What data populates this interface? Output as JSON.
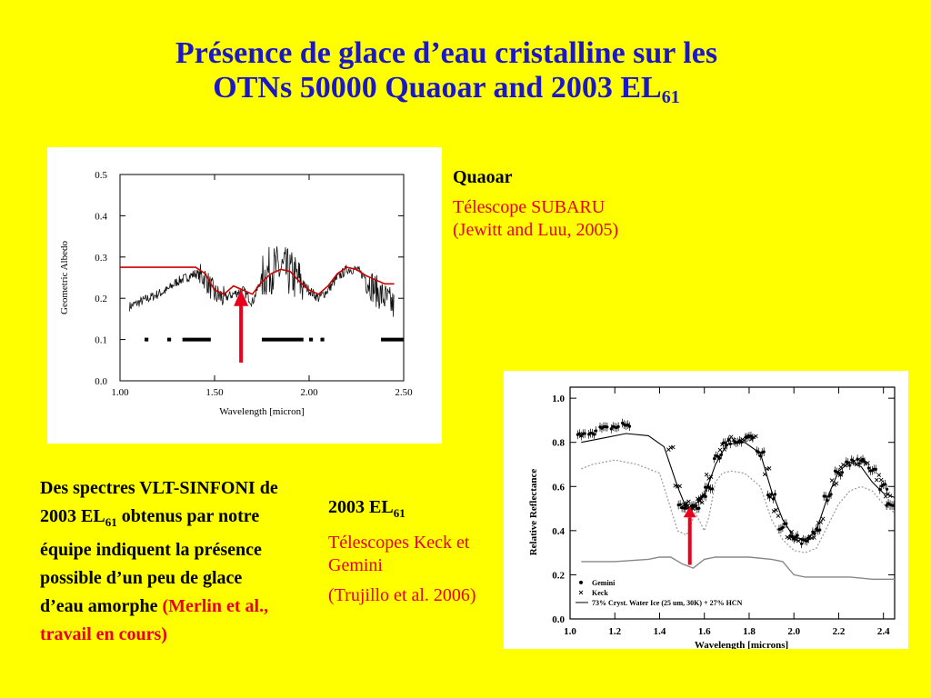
{
  "slide": {
    "title_line1": "Présence de glace d’eau cristalline sur les",
    "title_line2_main": "OTNs 50000  Quaoar and 2003 EL",
    "title_line2_sub": "61"
  },
  "quaoar": {
    "heading": "Quaoar",
    "telescope": "Télescope SUBARU",
    "reference": "(Jewitt and Luu, 2005)"
  },
  "el61": {
    "heading_main": "2003 EL",
    "heading_sub": "61",
    "telescope": "Télescopes Keck et Gemini",
    "reference": "(Trujillo et al. 2006)"
  },
  "description": {
    "part1": "Des spectres VLT-SINFONI de 2003 EL",
    "sub": "61",
    "part2": " obtenus par notre équipe indiquent la présence possible d’un peu de glace d’eau amorphe ",
    "citation": "(Merlin et al., travail en cours)"
  },
  "colors": {
    "background": "#ffff00",
    "title": "#1c17c4",
    "accent_red": "#e8001c"
  },
  "chart_data": [
    {
      "type": "line",
      "xlabel": "Wavelength [micron]",
      "ylabel": "Geometric Albedo",
      "xlim": [
        1.0,
        2.5
      ],
      "ylim": [
        0.0,
        0.5
      ],
      "xticks": [
        "1.00",
        "1.50",
        "2.00",
        "2.50"
      ],
      "yticks": [
        "0.0",
        "0.1",
        "0.2",
        "0.3",
        "0.4",
        "0.5"
      ],
      "grid": false,
      "series": [
        {
          "color": "#000000",
          "x": [
            1.05,
            1.1,
            1.15,
            1.2,
            1.25,
            1.3,
            1.35,
            1.4,
            1.45,
            1.5,
            1.55,
            1.6,
            1.65,
            1.7,
            1.75,
            1.8,
            1.85,
            1.9,
            1.95,
            2.0,
            2.05,
            2.1,
            2.15,
            2.2,
            2.25,
            2.3,
            2.35,
            2.4,
            2.45
          ],
          "y": [
            0.18,
            0.19,
            0.2,
            0.21,
            0.22,
            0.24,
            0.25,
            0.26,
            0.25,
            0.21,
            0.2,
            0.21,
            0.22,
            0.19,
            0.25,
            0.27,
            0.27,
            0.26,
            0.24,
            0.22,
            0.2,
            0.22,
            0.25,
            0.27,
            0.27,
            0.25,
            0.22,
            0.2,
            0.18
          ]
        },
        {
          "color": "#cc0000",
          "x": [
            1.0,
            1.1,
            1.2,
            1.3,
            1.4,
            1.45,
            1.5,
            1.55,
            1.6,
            1.65,
            1.7,
            1.75,
            1.8,
            1.85,
            1.9,
            1.95,
            2.0,
            2.05,
            2.1,
            2.15,
            2.2,
            2.25,
            2.3,
            2.35,
            2.4,
            2.45
          ],
          "y": [
            0.275,
            0.275,
            0.275,
            0.275,
            0.275,
            0.26,
            0.22,
            0.21,
            0.23,
            0.22,
            0.21,
            0.24,
            0.26,
            0.27,
            0.265,
            0.24,
            0.22,
            0.21,
            0.23,
            0.26,
            0.275,
            0.27,
            0.255,
            0.245,
            0.235,
            0.235
          ]
        }
      ],
      "bars_y": 0.1,
      "bar_segments": [
        [
          1.13,
          1.15
        ],
        [
          1.25,
          1.27
        ],
        [
          1.33,
          1.48
        ],
        [
          1.75,
          1.97
        ],
        [
          2.0,
          2.02
        ],
        [
          2.06,
          2.08
        ],
        [
          2.38,
          2.5
        ]
      ],
      "arrow_x": 1.64
    },
    {
      "type": "line",
      "xlabel": "Wavelength [microns]",
      "ylabel": "Relative Reflectance",
      "xlim": [
        1.0,
        2.45
      ],
      "ylim": [
        0.0,
        1.05
      ],
      "xticks": [
        "1.0",
        "1.2",
        "1.4",
        "1.6",
        "1.8",
        "2.0",
        "2.2",
        "2.4"
      ],
      "yticks": [
        "0.0",
        "0.2",
        "0.4",
        "0.6",
        "0.8",
        "1.0"
      ],
      "grid": false,
      "series": [
        {
          "name": "Gemini",
          "marker": "dot",
          "x": [
            1.05,
            1.1,
            1.15,
            1.2,
            1.25,
            1.5,
            1.53,
            1.56,
            1.59,
            1.62,
            1.66,
            1.7,
            1.75,
            1.8,
            1.85,
            1.9,
            1.95,
            2.0,
            2.05,
            2.1,
            2.15,
            2.2,
            2.25,
            2.3,
            2.35,
            2.4,
            2.43
          ],
          "y": [
            0.83,
            0.85,
            0.86,
            0.87,
            0.88,
            0.51,
            0.5,
            0.51,
            0.55,
            0.6,
            0.74,
            0.8,
            0.81,
            0.82,
            0.75,
            0.55,
            0.42,
            0.37,
            0.35,
            0.4,
            0.55,
            0.66,
            0.71,
            0.71,
            0.68,
            0.6,
            0.52
          ]
        },
        {
          "name": "Keck",
          "marker": "cross",
          "x": [
            1.45,
            1.48,
            1.52,
            1.55,
            1.58,
            1.62,
            1.68,
            1.72,
            1.78,
            1.82,
            1.88,
            1.92,
            1.98,
            2.02,
            2.08,
            2.12,
            2.18,
            2.22,
            2.28,
            2.32,
            2.38,
            2.42
          ],
          "y": [
            0.78,
            0.6,
            0.52,
            0.5,
            0.53,
            0.65,
            0.78,
            0.82,
            0.82,
            0.82,
            0.67,
            0.48,
            0.38,
            0.36,
            0.36,
            0.45,
            0.62,
            0.69,
            0.71,
            0.7,
            0.64,
            0.56
          ]
        },
        {
          "name": "73% Cryst. Water Ice (25 um, 30K) + 27% HCN",
          "x": [
            1.05,
            1.15,
            1.25,
            1.35,
            1.42,
            1.48,
            1.52,
            1.56,
            1.6,
            1.65,
            1.7,
            1.78,
            1.85,
            1.9,
            1.95,
            2.0,
            2.05,
            2.1,
            2.15,
            2.2,
            2.25,
            2.3,
            2.35,
            2.4,
            2.45
          ],
          "y": [
            0.8,
            0.82,
            0.84,
            0.83,
            0.78,
            0.6,
            0.5,
            0.52,
            0.56,
            0.7,
            0.79,
            0.8,
            0.75,
            0.58,
            0.45,
            0.37,
            0.36,
            0.4,
            0.55,
            0.67,
            0.71,
            0.69,
            0.62,
            0.57,
            0.55
          ]
        },
        {
          "name": "",
          "style": "dotted",
          "x": [
            1.05,
            1.1,
            1.2,
            1.3,
            1.4,
            1.45,
            1.48,
            1.52,
            1.56,
            1.6,
            1.62,
            1.65,
            1.68,
            1.72,
            1.78,
            1.85,
            1.9,
            1.95,
            2.0,
            2.05,
            2.1,
            2.15,
            2.2,
            2.25,
            2.3,
            2.35,
            2.4,
            2.45
          ],
          "y": [
            0.68,
            0.7,
            0.72,
            0.7,
            0.66,
            0.5,
            0.4,
            0.38,
            0.48,
            0.4,
            0.46,
            0.62,
            0.66,
            0.67,
            0.66,
            0.6,
            0.45,
            0.36,
            0.31,
            0.3,
            0.32,
            0.42,
            0.52,
            0.58,
            0.6,
            0.58,
            0.52,
            0.48
          ]
        },
        {
          "name": "",
          "style": "solid-gray",
          "x": [
            1.05,
            1.2,
            1.35,
            1.4,
            1.45,
            1.5,
            1.55,
            1.6,
            1.65,
            1.7,
            1.8,
            1.9,
            1.95,
            2.0,
            2.05,
            2.15,
            2.25,
            2.35,
            2.45
          ],
          "y": [
            0.26,
            0.26,
            0.27,
            0.28,
            0.28,
            0.25,
            0.23,
            0.27,
            0.28,
            0.28,
            0.28,
            0.27,
            0.26,
            0.2,
            0.19,
            0.19,
            0.19,
            0.18,
            0.18
          ]
        }
      ],
      "arrow_x": 1.535
    }
  ]
}
